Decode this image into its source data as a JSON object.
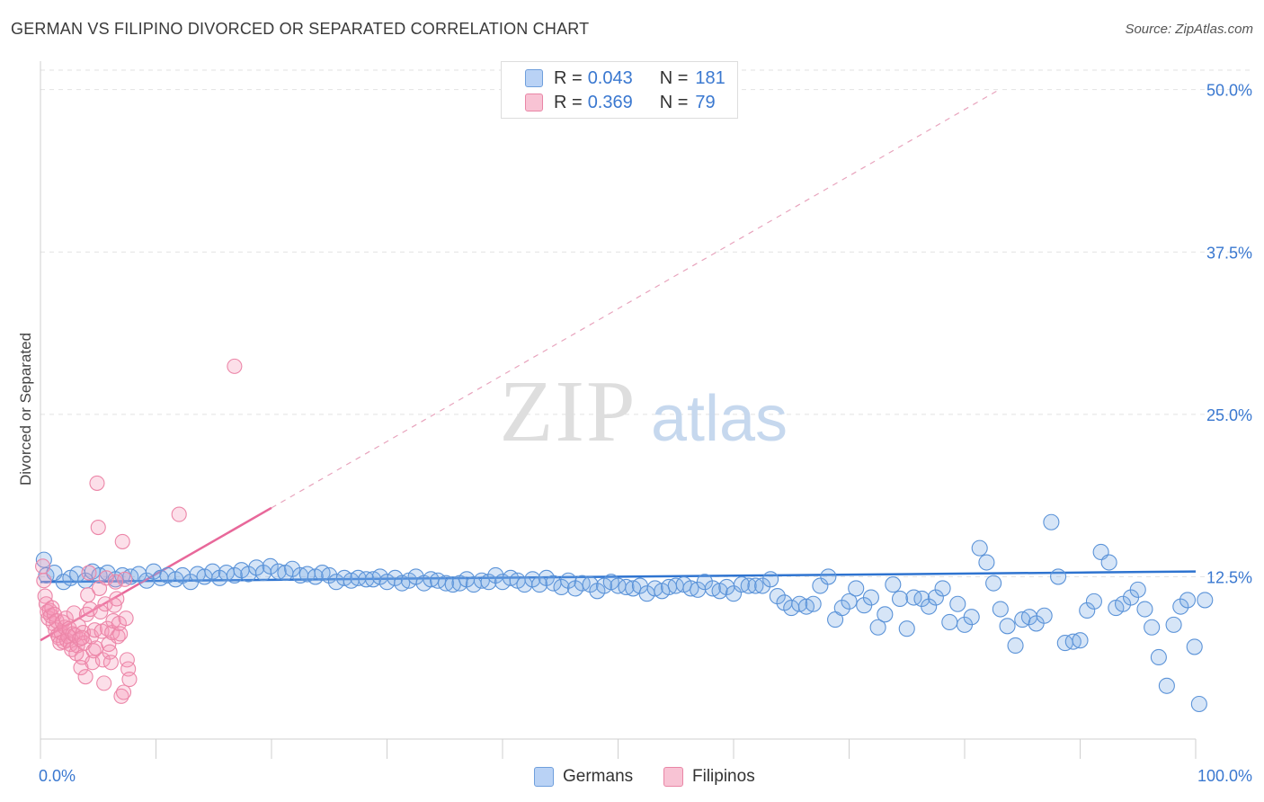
{
  "header": {
    "title": "GERMAN VS FILIPINO DIVORCED OR SEPARATED CORRELATION CHART",
    "source": "Source: ZipAtlas.com"
  },
  "watermark": {
    "zip": "ZIP",
    "atlas": "atlas"
  },
  "legend": {
    "rows": [
      {
        "name": "Germans",
        "r_label": "R =",
        "r_value": "0.043",
        "n_label": "N =",
        "n_value": "181",
        "fill": "#b9d2f5",
        "stroke": "#6f9fdc"
      },
      {
        "name": "Filipinos",
        "r_label": "R =",
        "r_value": "0.369",
        "n_label": "N =",
        "n_value": "79",
        "fill": "#f8c3d4",
        "stroke": "#e986a6"
      }
    ]
  },
  "colors": {
    "blue_point_fill": "rgba(120,168,230,0.30)",
    "blue_point_stroke": "#5b93d8",
    "blue_line": "#2f74d0",
    "pink_point_fill": "rgba(244,150,182,0.30)",
    "pink_point_stroke": "#ec86a8",
    "pink_line": "#e8689a",
    "grid": "#e2e2e2",
    "axis_text": "#3a78d0"
  },
  "chart_data": {
    "type": "scatter",
    "title": "GERMAN VS FILIPINO DIVORCED OR SEPARATED CORRELATION CHART",
    "xlabel": "",
    "ylabel": "Divorced or Separated",
    "xlim": [
      0,
      100
    ],
    "ylim": [
      0,
      51.5
    ],
    "x_tick_labels": [
      "0.0%",
      "100.0%"
    ],
    "y_ticks": [
      {
        "value": 12.5,
        "label": "12.5%"
      },
      {
        "value": 25.0,
        "label": "25.0%"
      },
      {
        "value": 37.5,
        "label": "37.5%"
      },
      {
        "value": 50.0,
        "label": "50.0%"
      }
    ],
    "x_minor_ticks": [
      0,
      10,
      20,
      30,
      40,
      50,
      60,
      70,
      80,
      90,
      100
    ],
    "series": [
      {
        "name": "Germans",
        "r": 0.043,
        "n": 181,
        "trend": {
          "x": [
            0,
            100
          ],
          "y": [
            12.1,
            12.9
          ]
        },
        "points": [
          [
            0.3,
            13.8
          ],
          [
            0.5,
            12.6
          ],
          [
            1.2,
            12.8
          ],
          [
            2.0,
            12.1
          ],
          [
            2.6,
            12.4
          ],
          [
            3.2,
            12.7
          ],
          [
            3.9,
            12.2
          ],
          [
            4.5,
            12.9
          ],
          [
            5.1,
            12.6
          ],
          [
            5.8,
            12.8
          ],
          [
            6.5,
            12.3
          ],
          [
            7.1,
            12.6
          ],
          [
            7.8,
            12.5
          ],
          [
            8.5,
            12.7
          ],
          [
            9.2,
            12.2
          ],
          [
            9.8,
            12.9
          ],
          [
            10.4,
            12.4
          ],
          [
            11.0,
            12.6
          ],
          [
            11.7,
            12.3
          ],
          [
            12.3,
            12.6
          ],
          [
            13.0,
            12.1
          ],
          [
            13.6,
            12.7
          ],
          [
            14.2,
            12.5
          ],
          [
            14.9,
            12.9
          ],
          [
            15.5,
            12.4
          ],
          [
            16.1,
            12.8
          ],
          [
            16.8,
            12.6
          ],
          [
            17.4,
            13.0
          ],
          [
            18.0,
            12.7
          ],
          [
            18.7,
            13.2
          ],
          [
            19.3,
            12.8
          ],
          [
            19.9,
            13.3
          ],
          [
            20.6,
            12.9
          ],
          [
            21.2,
            12.8
          ],
          [
            21.8,
            13.1
          ],
          [
            22.5,
            12.6
          ],
          [
            23.1,
            12.7
          ],
          [
            23.8,
            12.5
          ],
          [
            24.4,
            12.8
          ],
          [
            25.0,
            12.6
          ],
          [
            25.6,
            12.1
          ],
          [
            26.3,
            12.4
          ],
          [
            26.9,
            12.2
          ],
          [
            27.5,
            12.4
          ],
          [
            28.2,
            12.3
          ],
          [
            28.8,
            12.3
          ],
          [
            29.4,
            12.5
          ],
          [
            30.0,
            12.1
          ],
          [
            30.7,
            12.4
          ],
          [
            31.3,
            12.0
          ],
          [
            31.9,
            12.2
          ],
          [
            32.5,
            12.5
          ],
          [
            33.2,
            12.0
          ],
          [
            33.8,
            12.3
          ],
          [
            34.4,
            12.2
          ],
          [
            35.1,
            12.0
          ],
          [
            35.7,
            11.9
          ],
          [
            36.3,
            12.0
          ],
          [
            36.9,
            12.3
          ],
          [
            37.5,
            11.9
          ],
          [
            38.2,
            12.2
          ],
          [
            38.8,
            12.1
          ],
          [
            39.4,
            12.6
          ],
          [
            40.0,
            12.1
          ],
          [
            40.7,
            12.4
          ],
          [
            41.3,
            12.2
          ],
          [
            41.9,
            11.9
          ],
          [
            42.6,
            12.3
          ],
          [
            43.2,
            11.9
          ],
          [
            43.8,
            12.4
          ],
          [
            44.4,
            12.0
          ],
          [
            45.1,
            11.7
          ],
          [
            45.7,
            12.2
          ],
          [
            46.3,
            11.6
          ],
          [
            46.9,
            12.0
          ],
          [
            47.6,
            11.9
          ],
          [
            48.2,
            11.4
          ],
          [
            48.8,
            11.8
          ],
          [
            49.4,
            12.1
          ],
          [
            50.0,
            11.8
          ],
          [
            50.7,
            11.7
          ],
          [
            51.3,
            11.6
          ],
          [
            51.9,
            11.8
          ],
          [
            52.5,
            11.2
          ],
          [
            53.2,
            11.6
          ],
          [
            53.8,
            11.4
          ],
          [
            54.4,
            11.7
          ],
          [
            55.0,
            11.8
          ],
          [
            55.7,
            11.9
          ],
          [
            56.3,
            11.6
          ],
          [
            56.9,
            11.5
          ],
          [
            57.5,
            12.1
          ],
          [
            58.2,
            11.6
          ],
          [
            58.8,
            11.4
          ],
          [
            59.4,
            11.7
          ],
          [
            60.0,
            11.2
          ],
          [
            60.7,
            11.9
          ],
          [
            61.3,
            11.8
          ],
          [
            61.9,
            11.8
          ],
          [
            62.5,
            11.8
          ],
          [
            63.2,
            12.3
          ],
          [
            63.8,
            11.0
          ],
          [
            64.4,
            10.5
          ],
          [
            65.0,
            10.1
          ],
          [
            65.7,
            10.4
          ],
          [
            66.3,
            10.2
          ],
          [
            66.9,
            10.4
          ],
          [
            67.5,
            11.8
          ],
          [
            68.2,
            12.5
          ],
          [
            68.8,
            9.2
          ],
          [
            69.4,
            10.1
          ],
          [
            70.0,
            10.6
          ],
          [
            70.6,
            11.6
          ],
          [
            71.3,
            10.3
          ],
          [
            71.9,
            10.9
          ],
          [
            72.5,
            8.6
          ],
          [
            73.1,
            9.6
          ],
          [
            73.8,
            11.9
          ],
          [
            74.4,
            10.8
          ],
          [
            75.0,
            8.5
          ],
          [
            75.6,
            10.9
          ],
          [
            76.3,
            10.8
          ],
          [
            76.9,
            10.2
          ],
          [
            77.5,
            10.9
          ],
          [
            78.1,
            11.6
          ],
          [
            78.7,
            9.0
          ],
          [
            79.4,
            10.4
          ],
          [
            80.0,
            8.8
          ],
          [
            80.6,
            9.4
          ],
          [
            81.3,
            14.7
          ],
          [
            81.9,
            13.6
          ],
          [
            82.5,
            12.0
          ],
          [
            83.1,
            10.0
          ],
          [
            83.7,
            8.7
          ],
          [
            84.4,
            7.2
          ],
          [
            85.0,
            9.2
          ],
          [
            85.6,
            9.4
          ],
          [
            86.2,
            8.9
          ],
          [
            86.9,
            9.5
          ],
          [
            87.5,
            16.7
          ],
          [
            88.1,
            12.5
          ],
          [
            88.7,
            7.4
          ],
          [
            89.4,
            7.5
          ],
          [
            90.0,
            7.6
          ],
          [
            90.6,
            9.9
          ],
          [
            91.2,
            10.6
          ],
          [
            91.8,
            14.4
          ],
          [
            92.5,
            13.6
          ],
          [
            93.1,
            10.1
          ],
          [
            93.7,
            10.4
          ],
          [
            94.4,
            10.9
          ],
          [
            95.0,
            11.5
          ],
          [
            95.6,
            10.0
          ],
          [
            96.2,
            8.6
          ],
          [
            96.8,
            6.3
          ],
          [
            97.5,
            4.1
          ],
          [
            98.1,
            8.8
          ],
          [
            98.7,
            10.2
          ],
          [
            99.3,
            10.7
          ],
          [
            99.9,
            7.1
          ],
          [
            100.3,
            2.7
          ],
          [
            100.8,
            10.7
          ]
        ]
      },
      {
        "name": "Filipinos",
        "r": 0.369,
        "n": 79,
        "trend": {
          "x": [
            0,
            20
          ],
          "y": [
            7.6,
            17.8
          ]
        },
        "trend_dashed": {
          "x": [
            20,
            83
          ],
          "y": [
            17.8,
            50.0
          ]
        },
        "points": [
          [
            0.2,
            13.3
          ],
          [
            0.3,
            12.2
          ],
          [
            0.4,
            11.0
          ],
          [
            0.5,
            10.4
          ],
          [
            0.6,
            9.8
          ],
          [
            0.7,
            9.3
          ],
          [
            0.8,
            9.9
          ],
          [
            0.9,
            9.5
          ],
          [
            1.0,
            10.1
          ],
          [
            1.1,
            8.9
          ],
          [
            1.2,
            9.6
          ],
          [
            1.3,
            8.4
          ],
          [
            1.4,
            9.1
          ],
          [
            1.5,
            8.0
          ],
          [
            1.6,
            7.8
          ],
          [
            1.7,
            7.4
          ],
          [
            1.8,
            8.2
          ],
          [
            1.9,
            9.0
          ],
          [
            2.0,
            7.5
          ],
          [
            2.1,
            8.6
          ],
          [
            2.2,
            9.3
          ],
          [
            2.3,
            7.6
          ],
          [
            2.4,
            7.9
          ],
          [
            2.5,
            8.5
          ],
          [
            2.6,
            7.3
          ],
          [
            2.7,
            6.9
          ],
          [
            2.8,
            8.1
          ],
          [
            2.9,
            9.7
          ],
          [
            3.0,
            8.0
          ],
          [
            3.1,
            6.6
          ],
          [
            3.2,
            7.2
          ],
          [
            3.3,
            8.7
          ],
          [
            3.4,
            7.7
          ],
          [
            3.5,
            5.5
          ],
          [
            3.6,
            6.3
          ],
          [
            3.7,
            8.2
          ],
          [
            3.8,
            7.4
          ],
          [
            3.9,
            4.8
          ],
          [
            4.0,
            9.6
          ],
          [
            4.1,
            11.1
          ],
          [
            4.2,
            12.8
          ],
          [
            4.3,
            10.0
          ],
          [
            4.4,
            7.9
          ],
          [
            4.5,
            5.9
          ],
          [
            4.6,
            6.8
          ],
          [
            4.7,
            8.4
          ],
          [
            4.8,
            7.0
          ],
          [
            4.9,
            19.7
          ],
          [
            5.0,
            16.3
          ],
          [
            5.1,
            11.6
          ],
          [
            5.2,
            9.8
          ],
          [
            5.3,
            8.3
          ],
          [
            5.4,
            6.1
          ],
          [
            5.5,
            4.3
          ],
          [
            5.6,
            10.4
          ],
          [
            5.7,
            12.4
          ],
          [
            5.8,
            8.5
          ],
          [
            5.9,
            7.3
          ],
          [
            6.0,
            6.7
          ],
          [
            6.1,
            5.9
          ],
          [
            6.2,
            8.2
          ],
          [
            6.3,
            9.1
          ],
          [
            6.4,
            10.3
          ],
          [
            6.5,
            12.1
          ],
          [
            6.6,
            10.8
          ],
          [
            6.7,
            7.9
          ],
          [
            6.8,
            8.9
          ],
          [
            6.9,
            8.1
          ],
          [
            7.0,
            3.3
          ],
          [
            7.1,
            15.2
          ],
          [
            7.2,
            3.6
          ],
          [
            7.3,
            12.3
          ],
          [
            7.4,
            9.3
          ],
          [
            7.5,
            6.1
          ],
          [
            7.6,
            5.4
          ],
          [
            7.7,
            4.6
          ],
          [
            3.6,
            7.8
          ],
          [
            12.0,
            17.3
          ],
          [
            16.8,
            28.7
          ]
        ]
      }
    ]
  },
  "bottom_legend": [
    {
      "label": "Germans"
    },
    {
      "label": "Filipinos"
    }
  ]
}
